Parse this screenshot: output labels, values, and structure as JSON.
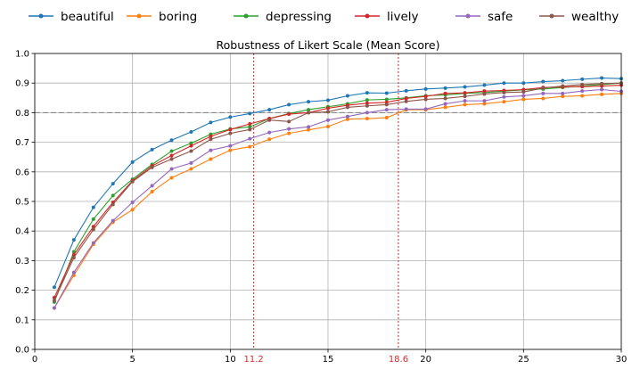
{
  "chart_data": {
    "type": "line",
    "title": "Robustness of Likert Scale (Mean Score)",
    "xlabel": "",
    "ylabel": "",
    "xlim": [
      0,
      30
    ],
    "ylim": [
      0.0,
      1.0
    ],
    "x_ticks": [
      0,
      5,
      10,
      15,
      20,
      25,
      30
    ],
    "y_ticks": [
      0.0,
      0.1,
      0.2,
      0.3,
      0.4,
      0.5,
      0.6,
      0.7,
      0.8,
      0.9,
      1.0
    ],
    "grid": true,
    "legend_placement": "top",
    "reference_lines": [
      {
        "orientation": "vertical",
        "value": 11.2,
        "label": "11.2",
        "color": "#d62728",
        "style": "dotted"
      },
      {
        "orientation": "vertical",
        "value": 18.6,
        "label": "18.6",
        "color": "#d62728",
        "style": "dotted"
      },
      {
        "orientation": "horizontal",
        "value": 0.8,
        "color": "#808080",
        "style": "dashed"
      }
    ],
    "x": [
      1,
      2,
      3,
      4,
      5,
      6,
      7,
      8,
      9,
      10,
      11,
      12,
      13,
      14,
      15,
      16,
      17,
      18,
      19,
      20,
      21,
      22,
      23,
      24,
      25,
      26,
      27,
      28,
      29,
      30
    ],
    "series": [
      {
        "name": "beautiful",
        "color": "#1f77b4",
        "values": [
          0.21,
          0.37,
          0.48,
          0.56,
          0.633,
          0.675,
          0.707,
          0.735,
          0.767,
          0.785,
          0.797,
          0.81,
          0.827,
          0.837,
          0.842,
          0.857,
          0.867,
          0.866,
          0.874,
          0.88,
          0.883,
          0.887,
          0.893,
          0.9,
          0.9,
          0.905,
          0.908,
          0.913,
          0.917,
          0.915
        ]
      },
      {
        "name": "boring",
        "color": "#ff7f0e",
        "values": [
          0.14,
          0.25,
          0.355,
          0.43,
          0.472,
          0.533,
          0.58,
          0.61,
          0.643,
          0.673,
          0.685,
          0.71,
          0.73,
          0.742,
          0.753,
          0.778,
          0.78,
          0.783,
          0.81,
          0.81,
          0.818,
          0.827,
          0.83,
          0.837,
          0.845,
          0.848,
          0.855,
          0.857,
          0.862,
          0.865
        ]
      },
      {
        "name": "depressing",
        "color": "#2ca02c",
        "values": [
          0.16,
          0.33,
          0.44,
          0.52,
          0.575,
          0.625,
          0.67,
          0.697,
          0.727,
          0.745,
          0.752,
          0.78,
          0.797,
          0.81,
          0.82,
          0.83,
          0.843,
          0.845,
          0.85,
          0.857,
          0.86,
          0.865,
          0.868,
          0.873,
          0.877,
          0.88,
          0.885,
          0.89,
          0.895,
          0.9
        ]
      },
      {
        "name": "lively",
        "color": "#d62728",
        "values": [
          0.175,
          0.32,
          0.415,
          0.497,
          0.57,
          0.62,
          0.655,
          0.688,
          0.72,
          0.743,
          0.762,
          0.78,
          0.795,
          0.8,
          0.815,
          0.825,
          0.832,
          0.835,
          0.848,
          0.855,
          0.865,
          0.867,
          0.873,
          0.875,
          0.878,
          0.885,
          0.887,
          0.888,
          0.89,
          0.893
        ]
      },
      {
        "name": "safe",
        "color": "#9467bd",
        "values": [
          0.14,
          0.26,
          0.36,
          0.435,
          0.497,
          0.553,
          0.61,
          0.63,
          0.673,
          0.688,
          0.712,
          0.733,
          0.745,
          0.752,
          0.775,
          0.787,
          0.8,
          0.81,
          0.812,
          0.812,
          0.83,
          0.84,
          0.84,
          0.853,
          0.857,
          0.865,
          0.865,
          0.873,
          0.878,
          0.872
        ]
      },
      {
        "name": "wealthy",
        "color": "#8c564b",
        "values": [
          0.165,
          0.31,
          0.405,
          0.49,
          0.567,
          0.615,
          0.643,
          0.67,
          0.71,
          0.73,
          0.743,
          0.775,
          0.77,
          0.8,
          0.803,
          0.818,
          0.823,
          0.827,
          0.838,
          0.845,
          0.848,
          0.855,
          0.863,
          0.868,
          0.87,
          0.883,
          0.89,
          0.895,
          0.898,
          0.9
        ]
      }
    ]
  }
}
